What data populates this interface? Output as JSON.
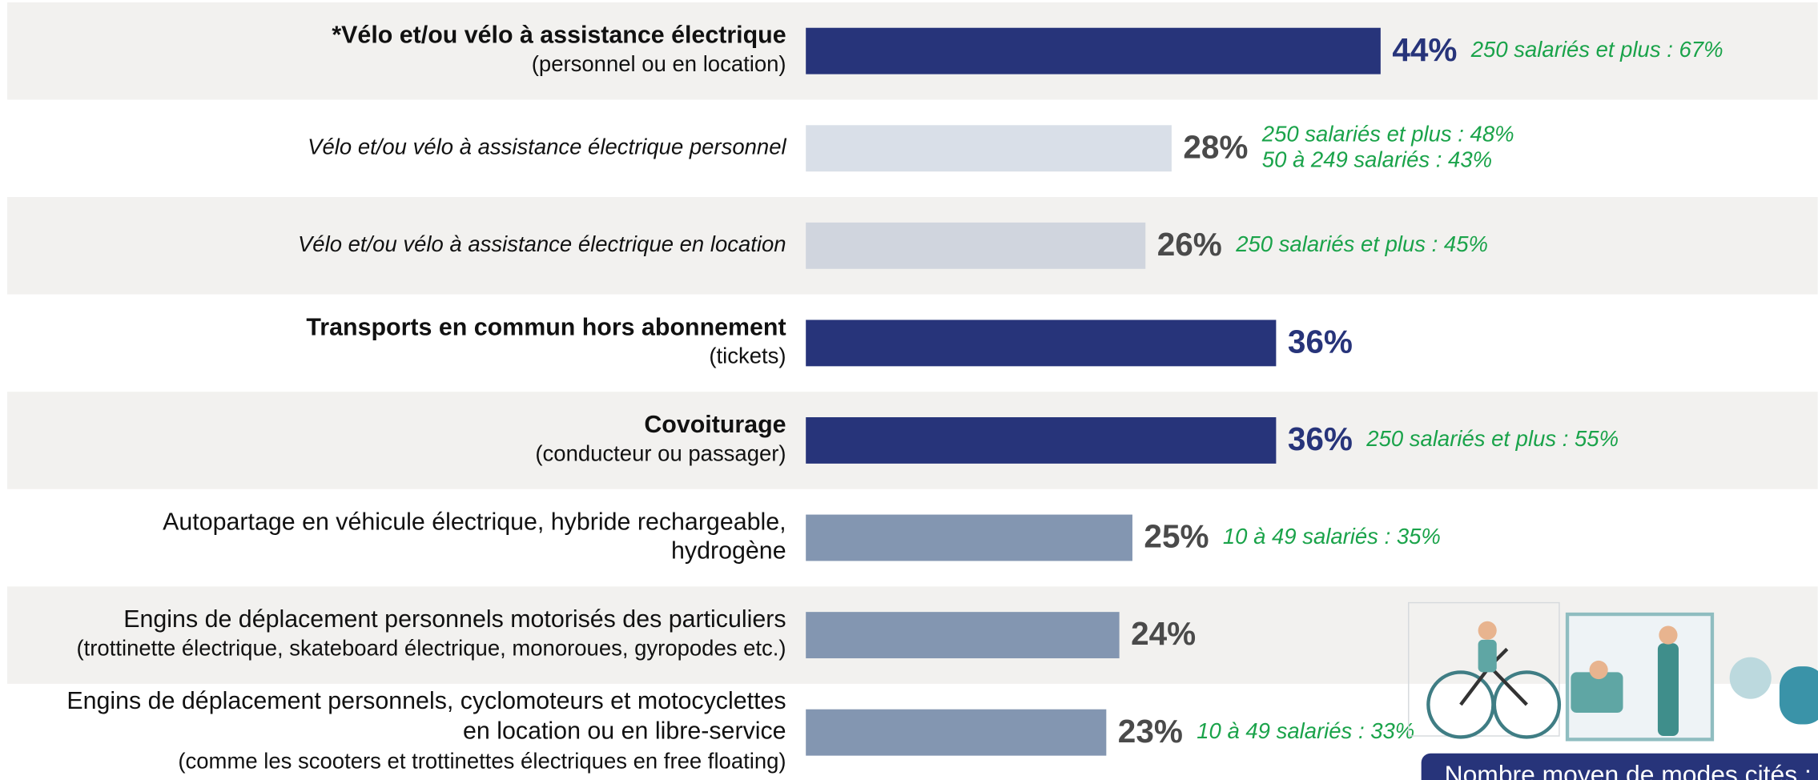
{
  "chart_data": {
    "type": "bar",
    "orientation": "horizontal",
    "categories": [
      [
        "*Vélo et/ou vélo à assistance électrique",
        "(personnel ou en location)"
      ],
      [
        "Vélo et/ou vélo à assistance électrique personnel"
      ],
      [
        "Vélo et/ou vélo à assistance électrique en location"
      ],
      [
        "Transports en commun hors abonnement",
        "(tickets)"
      ],
      [
        "Covoiturage",
        "(conducteur ou passager)"
      ],
      [
        "Autopartage en véhicule électrique, hybride rechargeable,",
        "hydrogène"
      ],
      [
        "Engins de déplacement personnels motorisés des particuliers",
        "(trottinette électrique, skateboard électrique, monoroues, gyropodes etc.)"
      ],
      [
        "Engins de déplacement personnels, cyclomoteurs et motocyclettes",
        "en location ou en libre-service",
        "(comme les scooters et trottinettes électriques en free floating)"
      ]
    ],
    "category_styles": [
      "bold",
      "italic",
      "italic",
      "bold",
      "bold",
      "normal",
      "normal",
      "normal"
    ],
    "values": [
      44,
      28,
      26,
      36,
      36,
      25,
      24,
      23
    ],
    "value_labels": [
      "44%",
      "28%",
      "26%",
      "36%",
      "36%",
      "25%",
      "24%",
      "23%"
    ],
    "colors": [
      "#27347a",
      "#d9dfe8",
      "#d0d5de",
      "#27347a",
      "#27347a",
      "#8396b1",
      "#8396b1",
      "#8396b1"
    ],
    "label_colors": [
      "#27347a",
      "#4a4a4a",
      "#4a4a4a",
      "#27347a",
      "#27347a",
      "#4a4a4a",
      "#4a4a4a",
      "#4a4a4a"
    ],
    "notes": [
      [
        "250 salariés et plus : 67%"
      ],
      [
        "250 salariés et plus : 48%",
        "50 à 249 salariés : 43%"
      ],
      [
        "250 salariés et plus : 45%"
      ],
      [],
      [
        "250 salariés et plus : 55%"
      ],
      [
        "10 à 49 salariés : 35%"
      ],
      [],
      [
        "10 à 49 salariés : 33%"
      ]
    ],
    "notes_color": "#1aa34a",
    "footer_box": "Nombre moyen de modes cités :"
  }
}
